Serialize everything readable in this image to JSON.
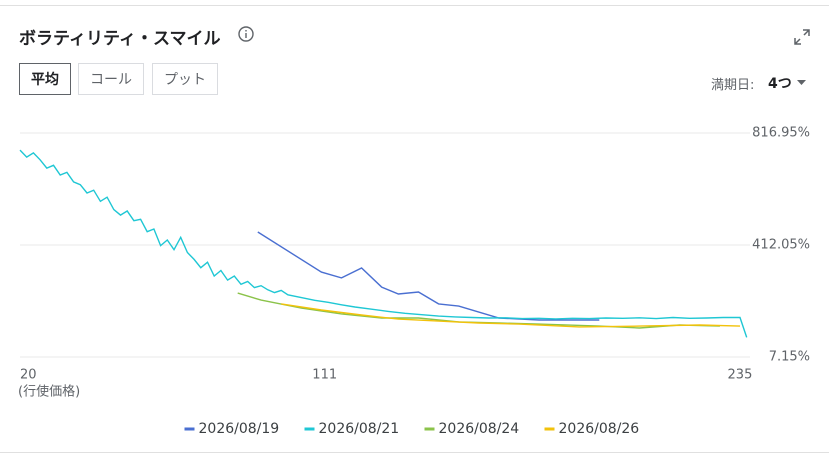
{
  "chart_data": {
    "type": "line",
    "title": "ボラティリティ・スマイル",
    "xlabel": "(行使価格)",
    "xlim": [
      20,
      238
    ],
    "xticks": [
      20,
      111,
      235
    ],
    "ylim": [
      7.15,
      816.95
    ],
    "yticks": [
      {
        "value": 7.15,
        "label": "7.15%"
      },
      {
        "value": 412.05,
        "label": "412.05%"
      },
      {
        "value": 816.95,
        "label": "816.95%"
      }
    ],
    "grid": true,
    "legend": "bottom",
    "series": [
      {
        "name": "2026/08/19",
        "color": "#4a6fd1",
        "x": [
          91,
          110,
          116,
          122,
          128,
          133,
          139,
          145,
          151,
          163,
          175,
          193
        ],
        "values": [
          459,
          314,
          293,
          329,
          260,
          235,
          242,
          199,
          191,
          148,
          141,
          141
        ]
      },
      {
        "name": "2026/08/21",
        "color": "#1fc7d4",
        "x": [
          20,
          22,
          24,
          26,
          28,
          30,
          32,
          34,
          36,
          38,
          40,
          42,
          44,
          46,
          48,
          50,
          52,
          54,
          56,
          58,
          60,
          62,
          64,
          66,
          68,
          70,
          72,
          74,
          76,
          78,
          80,
          82,
          84,
          86,
          88,
          90,
          92,
          94,
          96,
          98,
          100,
          104,
          108,
          112,
          116,
          120,
          125,
          130,
          135,
          140,
          145,
          150,
          155,
          160,
          165,
          170,
          175,
          180,
          185,
          190,
          195,
          200,
          205,
          210,
          215,
          220,
          225,
          230,
          235,
          237
        ],
        "values": [
          755,
          730,
          745,
          720,
          690,
          700,
          665,
          675,
          640,
          630,
          600,
          610,
          570,
          585,
          540,
          520,
          535,
          500,
          505,
          460,
          470,
          410,
          430,
          395,
          440,
          385,
          360,
          330,
          350,
          300,
          320,
          285,
          300,
          270,
          280,
          258,
          265,
          250,
          240,
          248,
          232,
          222,
          212,
          205,
          196,
          188,
          180,
          172,
          165,
          160,
          155,
          152,
          150,
          148,
          149,
          146,
          147,
          145,
          147,
          146,
          148,
          147,
          149,
          146,
          150,
          147,
          148,
          150,
          150,
          78
        ]
      },
      {
        "name": "2026/08/24",
        "color": "#8bc34a",
        "x": [
          85,
          92,
          104,
          116,
          128,
          139,
          151,
          163,
          175,
          193,
          205,
          217,
          229
        ],
        "values": [
          238,
          213,
          184,
          163,
          148,
          148,
          134,
          130,
          126,
          119,
          112,
          123,
          119
        ]
      },
      {
        "name": "2026/08/26",
        "color": "#f2c20b",
        "x": [
          98,
          110,
          122,
          133,
          145,
          157,
          169,
          187,
          205,
          223,
          235
        ],
        "values": [
          199,
          177,
          159,
          144,
          137,
          130,
          126,
          116,
          119,
          123,
          119
        ]
      }
    ]
  },
  "controls": {
    "tabs": [
      "平均",
      "コール",
      "プット"
    ],
    "expiry_label": "満期日:",
    "expiry_value": "4つ"
  }
}
